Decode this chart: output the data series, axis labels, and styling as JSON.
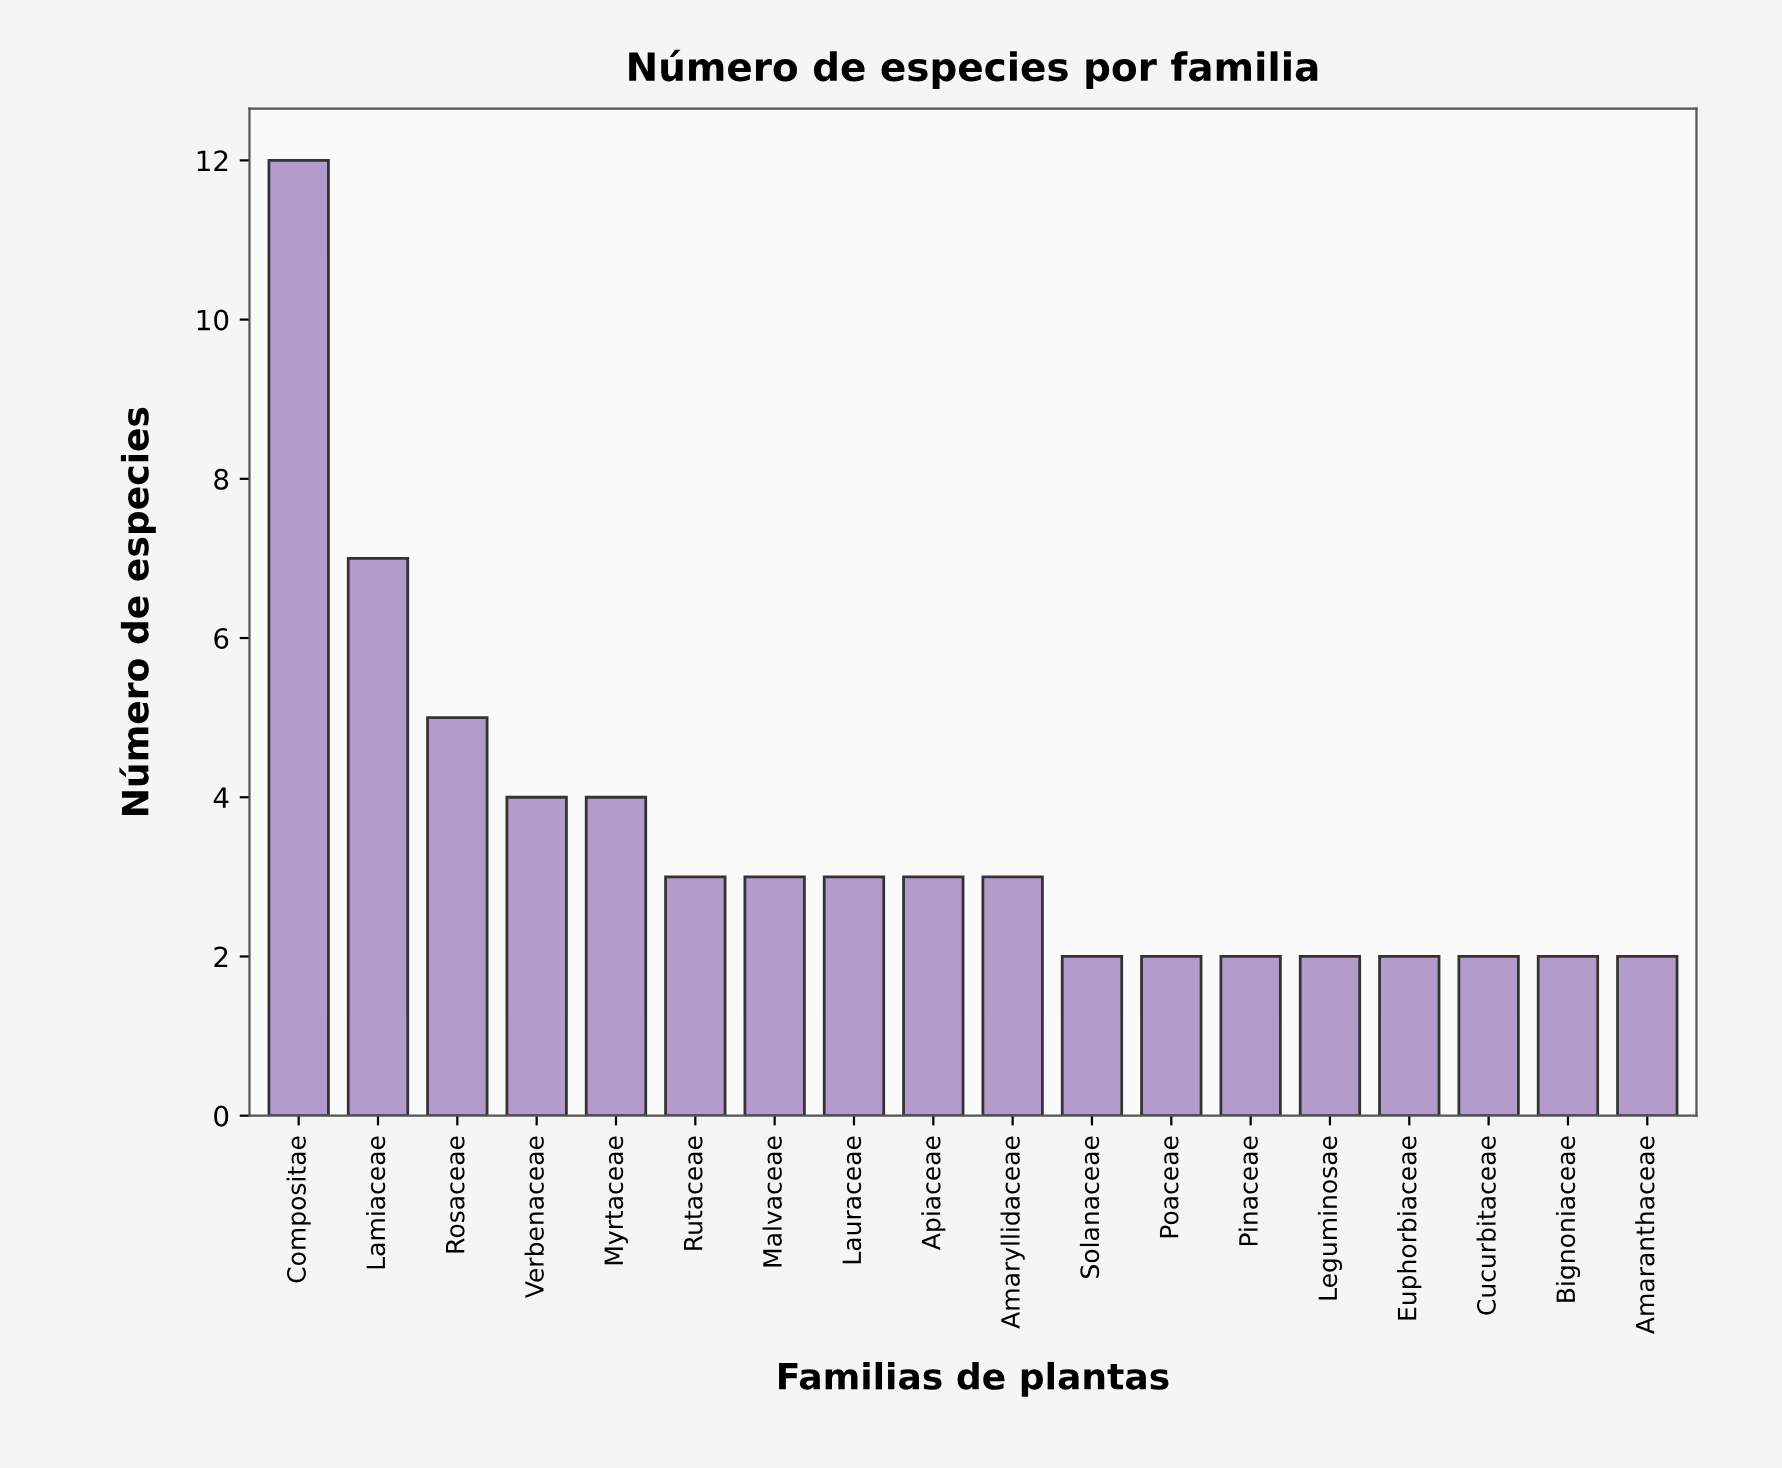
{
  "chart_data": {
    "type": "bar",
    "title": "Número de especies por familia",
    "xlabel": "Familias de plantas",
    "ylabel": "Número de especies",
    "categories": [
      "Compositae",
      "Lamiaceae",
      "Rosaceae",
      "Verbenaceae",
      "Myrtaceae",
      "Rutaceae",
      "Malvaceae",
      "Lauraceae",
      "Apiaceae",
      "Amaryllidaceae",
      "Solanaceae",
      "Poaceae",
      "Pinaceae",
      "Leguminosae",
      "Euphorbiaceae",
      "Cucurbitaceae",
      "Bignoniaceae",
      "Amaranthaceae"
    ],
    "values": [
      12,
      7,
      5,
      4,
      4,
      3,
      3,
      3,
      3,
      3,
      2,
      2,
      2,
      2,
      2,
      2,
      2,
      2
    ],
    "color": "#b39ccb",
    "ylim": [
      0,
      12.65
    ],
    "yticks": [
      0,
      2,
      4,
      6,
      8,
      10,
      12
    ],
    "grid": false
  }
}
